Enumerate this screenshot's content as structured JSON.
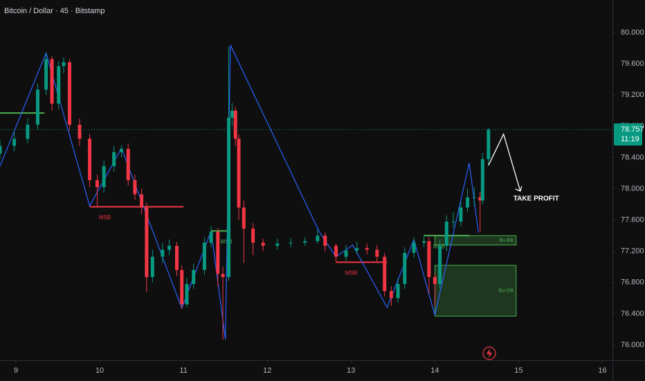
{
  "chart_data": {
    "type": "candlestick",
    "title": "Bitcoin / Dollar · 45 · Bitstamp",
    "xlim": [
      8.81,
      16.12
    ],
    "xticks": [
      9,
      10,
      11,
      12,
      13,
      14,
      15,
      16
    ],
    "ylim": [
      75.805,
      80.417
    ],
    "yticks": [
      {
        "value": 76,
        "label": "76.000"
      },
      {
        "value": 76.4,
        "label": "76.400"
      },
      {
        "value": 76.8,
        "label": "76.800"
      },
      {
        "value": 77.2,
        "label": "77.200"
      },
      {
        "value": 77.6,
        "label": "77.600"
      },
      {
        "value": 78,
        "label": "78.000"
      },
      {
        "value": 78.4,
        "label": "78.400"
      },
      {
        "value": 78.8,
        "label": "78.800"
      },
      {
        "value": 79.2,
        "label": "79.200"
      },
      {
        "value": 79.6,
        "label": "79.600"
      },
      {
        "value": 80,
        "label": "80.000"
      }
    ],
    "grid": false,
    "up_color": "#089981",
    "down_color": "#f23645",
    "x": [
      8.81,
      8.98,
      9.14,
      9.26,
      9.36,
      9.43,
      9.51,
      9.57,
      9.64,
      9.76,
      9.88,
      9.97,
      10.05,
      10.17,
      10.26,
      10.34,
      10.42,
      10.5,
      10.56,
      10.63,
      10.75,
      10.83,
      10.92,
      10.98,
      11.04,
      11.12,
      11.25,
      11.33,
      11.41,
      11.47,
      11.54,
      11.58,
      11.62,
      11.66,
      11.72,
      11.83,
      11.95,
      12.12,
      12.28,
      12.45,
      12.6,
      12.69,
      12.82,
      12.94,
      13.07,
      13.19,
      13.31,
      13.4,
      13.48,
      13.56,
      13.64,
      13.75,
      13.87,
      13.93,
      14.0,
      14.06,
      14.14,
      14.22,
      14.31,
      14.39,
      14.47,
      14.54,
      14.57,
      14.64
    ],
    "open": [
      78.45,
      78.55,
      78.64,
      78.82,
      79.27,
      79.66,
      79.09,
      79.57,
      79.62,
      78.82,
      78.64,
      78.11,
      78.02,
      78.29,
      78.47,
      78.51,
      78.11,
      77.93,
      77.76,
      76.87,
      77.13,
      77.22,
      77.27,
      76.96,
      76.52,
      76.78,
      76.96,
      77.31,
      77.45,
      76.91,
      76.87,
      78.91,
      79.0,
      78.64,
      77.76,
      77.49,
      77.31,
      77.27,
      77.3,
      77.31,
      77.33,
      77.4,
      77.27,
      77.13,
      77.21,
      77.24,
      77.22,
      77.13,
      76.69,
      76.6,
      76.78,
      77.18,
      77.31,
      77.33,
      76.87,
      76.78,
      77.27,
      77.58,
      77.58,
      77.76,
      77.89,
      77.89,
      77.85,
      78.38
    ],
    "high": [
      78.62,
      78.72,
      78.9,
      79.35,
      79.74,
      79.7,
      79.63,
      79.68,
      79.66,
      78.9,
      78.7,
      78.18,
      78.36,
      78.55,
      78.56,
      78.58,
      78.18,
      78.0,
      77.82,
      77.22,
      77.31,
      77.35,
      77.32,
      77.02,
      76.86,
      77.04,
      77.38,
      77.52,
      77.5,
      77.0,
      79.82,
      79.1,
      79.05,
      78.7,
      77.85,
      77.56,
      77.36,
      77.36,
      77.37,
      77.38,
      77.48,
      77.44,
      77.3,
      77.28,
      77.32,
      77.3,
      77.28,
      77.18,
      76.75,
      76.86,
      77.25,
      77.38,
      77.4,
      77.38,
      76.92,
      77.34,
      77.66,
      77.7,
      77.84,
      78.0,
      78.02,
      77.96,
      78.46,
      78.78
    ],
    "low": [
      78.38,
      78.48,
      78.58,
      78.76,
      79.2,
      79.0,
      79.02,
      79.48,
      78.74,
      78.55,
      78.02,
      77.78,
      77.95,
      78.22,
      78.4,
      78.04,
      77.86,
      77.68,
      76.68,
      76.8,
      77.05,
      77.15,
      76.88,
      76.46,
      76.48,
      76.72,
      76.9,
      77.25,
      76.75,
      76.07,
      76.82,
      78.8,
      78.55,
      77.6,
      77.05,
      77.15,
      77.2,
      77.22,
      77.25,
      77.27,
      77.3,
      77.2,
      77.06,
      77.08,
      77.16,
      77.16,
      77.05,
      76.62,
      76.5,
      76.54,
      76.72,
      77.12,
      77.25,
      76.66,
      76.5,
      76.72,
      77.2,
      77.5,
      77.52,
      77.7,
      77.78,
      77.45,
      77.8,
      78.3
    ],
    "close": [
      78.55,
      78.64,
      78.82,
      79.27,
      79.66,
      79.09,
      79.57,
      79.62,
      78.82,
      78.64,
      78.11,
      78.02,
      78.29,
      78.47,
      78.51,
      78.11,
      77.93,
      77.76,
      76.87,
      77.13,
      77.22,
      77.27,
      76.96,
      76.52,
      76.78,
      76.96,
      77.31,
      77.45,
      76.91,
      76.87,
      78.91,
      79.0,
      78.64,
      77.76,
      77.49,
      77.31,
      77.27,
      77.3,
      77.31,
      77.33,
      77.4,
      77.27,
      77.13,
      77.21,
      77.24,
      77.22,
      77.13,
      76.69,
      76.6,
      76.78,
      77.18,
      77.31,
      77.33,
      76.87,
      76.78,
      77.27,
      77.58,
      77.58,
      77.76,
      77.89,
      77.89,
      77.85,
      78.38,
      78.757
    ],
    "zigzag": {
      "color": "#2962ff",
      "x": [
        8.81,
        9.36,
        9.88,
        10.26,
        10.98,
        11.33,
        11.5,
        11.56,
        12.62,
        12.82,
        13.02,
        13.43,
        13.75,
        14.0,
        14.41,
        14.52
      ],
      "y": [
        78.29,
        79.74,
        77.78,
        78.52,
        76.47,
        77.46,
        76.07,
        79.84,
        77.45,
        77.13,
        77.28,
        76.48,
        77.35,
        76.38,
        78.33,
        77.44
      ]
    },
    "levels": [
      {
        "color": "#4caf50",
        "x": [
          8.81,
          9.34
        ],
        "y": 78.97
      },
      {
        "label": "MSB",
        "color": "#f23645",
        "x": [
          9.88,
          11.0
        ],
        "y": 77.77
      },
      {
        "label": "MSB",
        "color": "#4caf50",
        "x": [
          11.33,
          11.56
        ],
        "y": 77.46
      },
      {
        "label": "MSB",
        "color": "#f23645",
        "x": [
          12.82,
          13.43
        ],
        "y": 77.06
      },
      {
        "label": "MSB",
        "color": "#4caf50",
        "x": [
          13.87,
          14.41
        ],
        "y": 77.4
      }
    ],
    "zones": [
      {
        "label": "Bu-BB",
        "color": "#4caf50",
        "x": [
          14.0,
          14.97
        ],
        "y": [
          77.28,
          77.4
        ]
      },
      {
        "label": "Bu-OB",
        "color": "#4caf50",
        "x": [
          14.0,
          14.97
        ],
        "y": [
          76.37,
          77.02
        ]
      }
    ],
    "target": {
      "label": "TAKE PROFIT",
      "x": [
        14.64,
        14.82,
        15.02
      ],
      "y": [
        78.3,
        78.7,
        77.97
      ]
    },
    "last_price": 78.757,
    "countdown": "11:19"
  }
}
